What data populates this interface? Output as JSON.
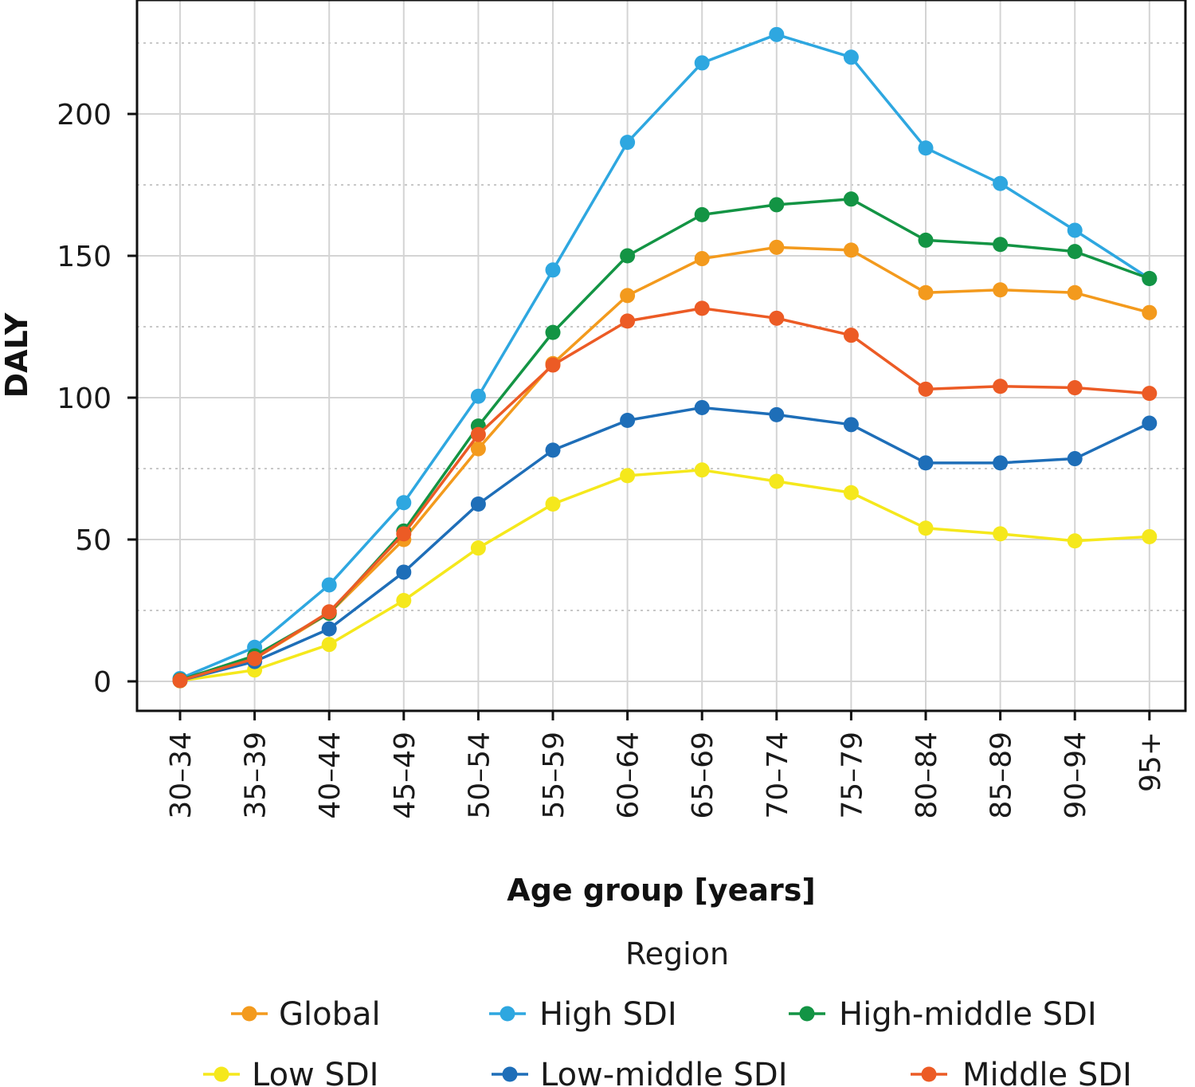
{
  "chart_data": {
    "type": "line",
    "xlabel": "Age group [years]",
    "ylabel": "DALY",
    "ylim": [
      -10,
      236
    ],
    "yticks": [
      0,
      50,
      100,
      150,
      200
    ],
    "yminor": [
      25,
      75,
      125,
      175,
      225
    ],
    "grid": true,
    "categories": [
      "30–34",
      "35–39",
      "40–44",
      "45–49",
      "50–54",
      "55–59",
      "60–64",
      "65–69",
      "70–74",
      "75–79",
      "80–84",
      "85–89",
      "90–94",
      "95+"
    ],
    "legend_title": "Region",
    "legend_position": "bottom",
    "series": [
      {
        "name": "Global",
        "color": "#F39A1D",
        "values": [
          0.5,
          8,
          24,
          50,
          82,
          112,
          136,
          149,
          153,
          152,
          137,
          138,
          137,
          130
        ]
      },
      {
        "name": "High SDI",
        "color": "#2EA7E0",
        "values": [
          1,
          12,
          34,
          63,
          100.5,
          145,
          190,
          218,
          228,
          220,
          188,
          175.5,
          159,
          142
        ]
      },
      {
        "name": "High-middle SDI",
        "color": "#139444",
        "values": [
          0.5,
          9,
          24,
          53,
          90,
          123,
          150,
          164.5,
          168,
          170,
          155.5,
          154,
          151.5,
          142
        ]
      },
      {
        "name": "Low SDI",
        "color": "#F5E81C",
        "values": [
          0.2,
          4,
          13,
          28.5,
          47,
          62.5,
          72.5,
          74.5,
          70.5,
          66.5,
          54,
          52,
          49.5,
          51
        ]
      },
      {
        "name": "Low-middle SDI",
        "color": "#1E6EB8",
        "values": [
          0.3,
          7,
          18.5,
          38.5,
          62.5,
          81.5,
          92,
          96.5,
          94,
          90.5,
          77,
          77,
          78.5,
          91
        ]
      },
      {
        "name": "Middle SDI",
        "color": "#EC5B25",
        "values": [
          0.3,
          8,
          24.5,
          52,
          87,
          111.5,
          127,
          131.5,
          128,
          122,
          103,
          104,
          103.5,
          101.5
        ]
      }
    ]
  }
}
